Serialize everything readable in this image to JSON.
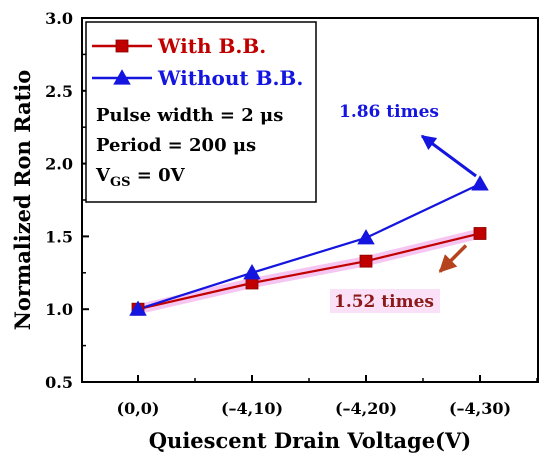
{
  "chart_data": {
    "type": "line",
    "categories": [
      "(0,0)",
      "(–4,10)",
      "(–4,20)",
      "(–4,30)"
    ],
    "xlabel": "Quiescent Drain Voltage(V)",
    "ylabel": "Normalized Ron Ratio",
    "ylim": [
      0.5,
      3.0
    ],
    "yticks": [
      "0.5",
      "1.0",
      "1.5",
      "2.0",
      "2.5",
      "3.0"
    ],
    "grid": false,
    "legend_position": "top-left",
    "series": [
      {
        "name": "With B.B.",
        "values": [
          1.0,
          1.18,
          1.33,
          1.52
        ],
        "color": "#c00000",
        "marker": "square"
      },
      {
        "name": "Without B.B.",
        "values": [
          1.0,
          1.25,
          1.49,
          1.86
        ],
        "color": "#1515e0",
        "marker": "triangle"
      }
    ],
    "conditions": [
      {
        "main": "Pulse width = 2 μs"
      },
      {
        "main": "Period = 200 μs"
      },
      {
        "main": "V",
        "sub": "GS",
        "tail": " = 0V"
      }
    ],
    "annotations": [
      {
        "text": "1.86 times",
        "color": "#1515e0"
      },
      {
        "text": "1.52 times",
        "color": "#8b1a1a"
      }
    ]
  }
}
